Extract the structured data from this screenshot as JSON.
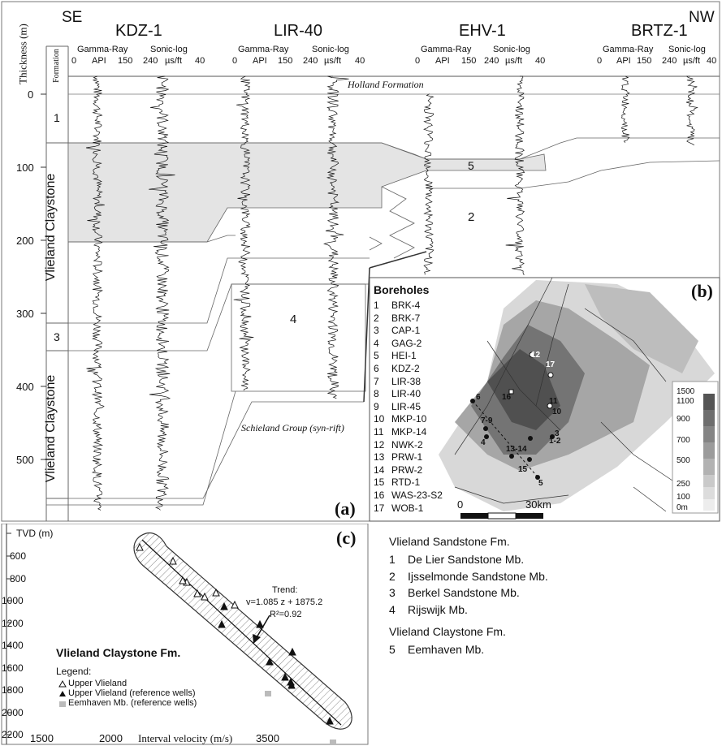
{
  "direction": {
    "left": "SE",
    "right": "NW"
  },
  "axis_label": "Thickness (m)",
  "formation_col": "Formation",
  "thickness_ticks": [
    "0",
    "100",
    "200",
    "300",
    "400",
    "500"
  ],
  "wells": [
    {
      "name": "KDZ-1",
      "gr_label": "Gamma-Ray",
      "gr_scale": [
        "0",
        "API",
        "150"
      ],
      "sonic_label": "Sonic-log",
      "sonic_scale": [
        "240",
        "µs/ft",
        "40"
      ]
    },
    {
      "name": "LIR-40",
      "gr_label": "Gamma-Ray",
      "gr_scale": [
        "0",
        "API",
        "150"
      ],
      "sonic_label": "Sonic-log",
      "sonic_scale": [
        "240",
        "µs/ft",
        "40"
      ]
    },
    {
      "name": "EHV-1",
      "gr_label": "Gamma-Ray",
      "gr_scale": [
        "0",
        "API",
        "150"
      ],
      "sonic_label": "Sonic-log",
      "sonic_scale": [
        "240",
        "µs/ft",
        "40"
      ]
    },
    {
      "name": "BRTZ-1",
      "gr_label": "Gamma-Ray",
      "gr_scale": [
        "0",
        "API",
        "150"
      ],
      "sonic_label": "Sonic-log",
      "sonic_scale": [
        "240",
        "µs/ft",
        "40"
      ]
    }
  ],
  "formation_labels": {
    "unit1": "1",
    "unit3": "3",
    "upper_claystone": "Vlieland Claystone",
    "lower_claystone": "Vlieland Claystone"
  },
  "unit_labels": {
    "holland": "Holland Formation",
    "u5": "5",
    "u2": "2",
    "u4": "4",
    "schieland": "Schieland Group (syn-rift)"
  },
  "panel_labels": {
    "a": "(a)",
    "b": "(b)",
    "c": "(c)"
  },
  "map": {
    "title": "Boreholes",
    "boreholes": [
      "BRK-4",
      "BRK-7",
      "CAP-1",
      "GAG-2",
      "HEI-1",
      "KDZ-2",
      "LIR-38",
      "LIR-40",
      "LIR-45",
      "MKP-10",
      "MKP-14",
      "NWK-2",
      "PRW-1",
      "PRW-2",
      "RTD-1",
      "WAS-23-S2",
      "WOB-1"
    ],
    "well_labels": [
      "12",
      "17",
      "16",
      "11",
      "10",
      "6",
      "7-9",
      "4",
      "1-2",
      "3",
      "13-14",
      "15",
      "5"
    ],
    "scale_labels": [
      "0",
      "30km"
    ],
    "depth_legend": [
      "1500",
      "1100",
      "900",
      "700",
      "500",
      "250",
      "100",
      "0m"
    ]
  },
  "crossplot": {
    "title": "Vlieland Claystone Fm.",
    "ylabel": "TVD (m)",
    "xlabel": "Interval velocity (m/s)",
    "y_ticks": [
      "600",
      "800",
      "1000",
      "1200",
      "1400",
      "1600",
      "1800",
      "2000",
      "2200"
    ],
    "x_ticks": [
      "1500",
      "2000",
      "3500"
    ],
    "trend": [
      "Trend:",
      "v=1.085 z + 1875.2",
      "R²=0.92"
    ],
    "legend_title": "Legend:",
    "legend": [
      "Upper Vlieland",
      "Upper Vlieland (reference wells)",
      "Eemhaven Mb. (reference wells)"
    ]
  },
  "members": {
    "sandstone_title": "Vlieland Sandstone Fm.",
    "sandstone": [
      {
        "num": "1",
        "name": "De Lier Sandstone Mb."
      },
      {
        "num": "2",
        "name": "Ijsselmonde Sandstone Mb."
      },
      {
        "num": "3",
        "name": "Berkel Sandstone Mb."
      },
      {
        "num": "4",
        "name": "Rijswijk Mb."
      }
    ],
    "claystone_title": "Vlieland Claystone Fm.",
    "claystone": [
      {
        "num": "5",
        "name": "Eemhaven Mb."
      }
    ]
  }
}
